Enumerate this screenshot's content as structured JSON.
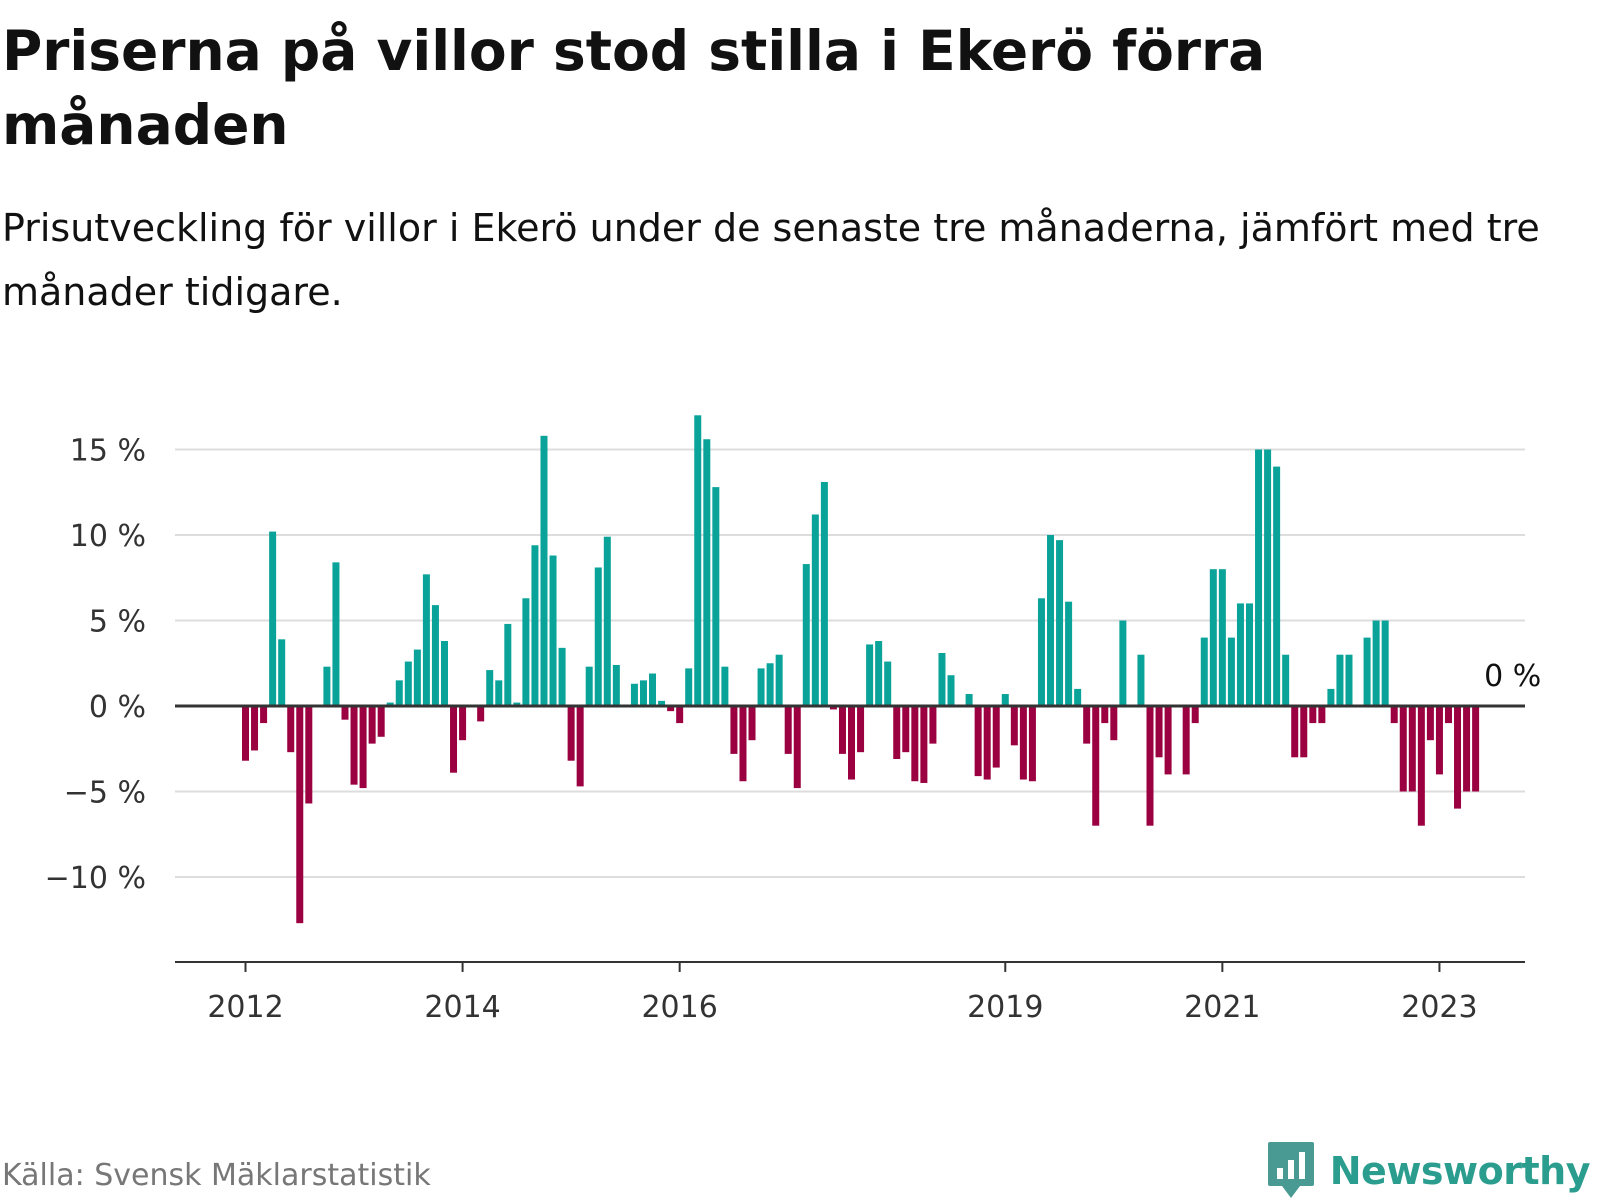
{
  "header": {
    "title": "Priserna på villor stod stilla i Ekerö förra månaden",
    "subtitle": "Prisutveckling för villor i Ekerö under de senaste tre månaderna, jämfört med tre månader tidigare."
  },
  "footer": {
    "source": "Källa: Svensk Mäklarstatistik",
    "brand": "Newsworthy"
  },
  "colors": {
    "positive": "#0aa39a",
    "negative": "#9b0041",
    "grid": "#dddddd",
    "axis": "#333333",
    "text": "#333333"
  },
  "chart_data": {
    "type": "bar",
    "title": "Priserna på villor stod stilla i Ekerö förra månaden",
    "ylabel": "",
    "xlabel": "",
    "unit": "%",
    "ylim": [
      -14.5,
      17
    ],
    "yticks": [
      -10,
      -5,
      0,
      5,
      10,
      15
    ],
    "ytick_labels": [
      "−10 %",
      "−5 %",
      "0 %",
      "5 %",
      "10 %",
      "15 %"
    ],
    "xtick_labels": [
      "2012",
      "2014",
      "2016",
      "2019",
      "2021",
      "2023"
    ],
    "xtick_indices": [
      0,
      24,
      48,
      84,
      108,
      132
    ],
    "grid": true,
    "last_label": "0 %",
    "series": [
      {
        "name": "Prisutveckling",
        "values": [
          -3.2,
          -2.6,
          -1.0,
          10.2,
          3.9,
          -2.7,
          -12.7,
          -5.7,
          0,
          2.3,
          8.4,
          -0.8,
          -4.6,
          -4.8,
          -2.2,
          -1.8,
          0.2,
          1.5,
          2.6,
          3.3,
          7.7,
          5.9,
          3.8,
          -3.9,
          -2.0,
          0,
          -0.9,
          2.1,
          1.5,
          4.8,
          0.2,
          6.3,
          9.4,
          15.8,
          8.8,
          3.4,
          -3.2,
          -4.7,
          2.3,
          8.1,
          9.9,
          2.4,
          0,
          1.3,
          1.5,
          1.9,
          0.3,
          -0.3,
          -1.0,
          2.2,
          17.0,
          15.6,
          12.8,
          2.3,
          -2.8,
          -4.4,
          -2.0,
          2.2,
          2.5,
          3.0,
          -2.8,
          -4.8,
          8.3,
          11.2,
          13.1,
          -0.2,
          -2.8,
          -4.3,
          -2.7,
          3.6,
          3.8,
          2.6,
          -3.1,
          -2.7,
          -4.4,
          -4.5,
          -2.2,
          3.1,
          1.8,
          0,
          0.7,
          -4.1,
          -4.3,
          -3.6,
          0.7,
          -2.3,
          -4.3,
          -4.4,
          6.3,
          10.0,
          9.7,
          6.1,
          1.0,
          -2.2,
          -7.0,
          -1.0,
          -2.0,
          5.0,
          0,
          3.0,
          -7.0,
          -3.0,
          -4.0,
          0,
          -4.0,
          -1.0,
          4.0,
          8.0,
          8.0,
          4.0,
          6.0,
          6.0,
          15.0,
          15.0,
          14.0,
          3.0,
          -3.0,
          -3.0,
          -1.0,
          -1.0,
          1.0,
          3.0,
          3.0,
          0,
          4.0,
          5.0,
          5.0,
          -1.0,
          -5.0,
          -5.0,
          -7.0,
          -2.0,
          -4.0,
          -1.0,
          -6.0,
          -5.0,
          -5.0,
          0
        ]
      }
    ]
  }
}
